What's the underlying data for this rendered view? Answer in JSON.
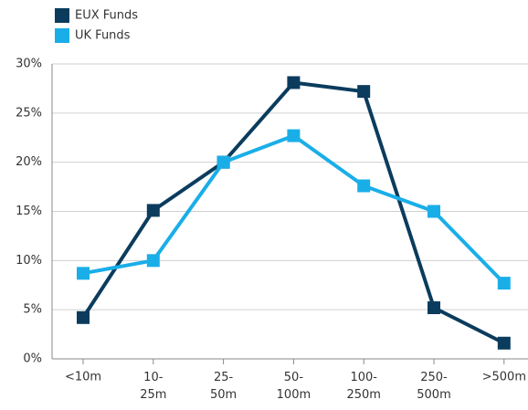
{
  "chart_data": {
    "type": "line",
    "categories": [
      "<10m",
      "10-25m",
      "25-50m",
      "50-100m",
      "100-250m",
      "250-500m",
      ">500m"
    ],
    "series": [
      {
        "name": "EUX Funds",
        "color": "#0b3c5d",
        "values": [
          4.2,
          15.1,
          20,
          28.1,
          27.2,
          5.2,
          1.6
        ]
      },
      {
        "name": "UK Funds",
        "color": "#1aaee8",
        "values": [
          8.7,
          10,
          20,
          22.7,
          17.6,
          15,
          7.7
        ]
      }
    ],
    "ylim": [
      0,
      30
    ],
    "yticks": [
      {
        "value": 0,
        "label": "0%"
      },
      {
        "value": 5,
        "label": "5%"
      },
      {
        "value": 10,
        "label": "10%"
      },
      {
        "value": 15,
        "label": "15%"
      },
      {
        "value": 20,
        "label": "20%"
      },
      {
        "value": 25,
        "label": "25%"
      },
      {
        "value": 30,
        "label": "30%"
      }
    ],
    "grid": true,
    "legend": "top-left"
  }
}
